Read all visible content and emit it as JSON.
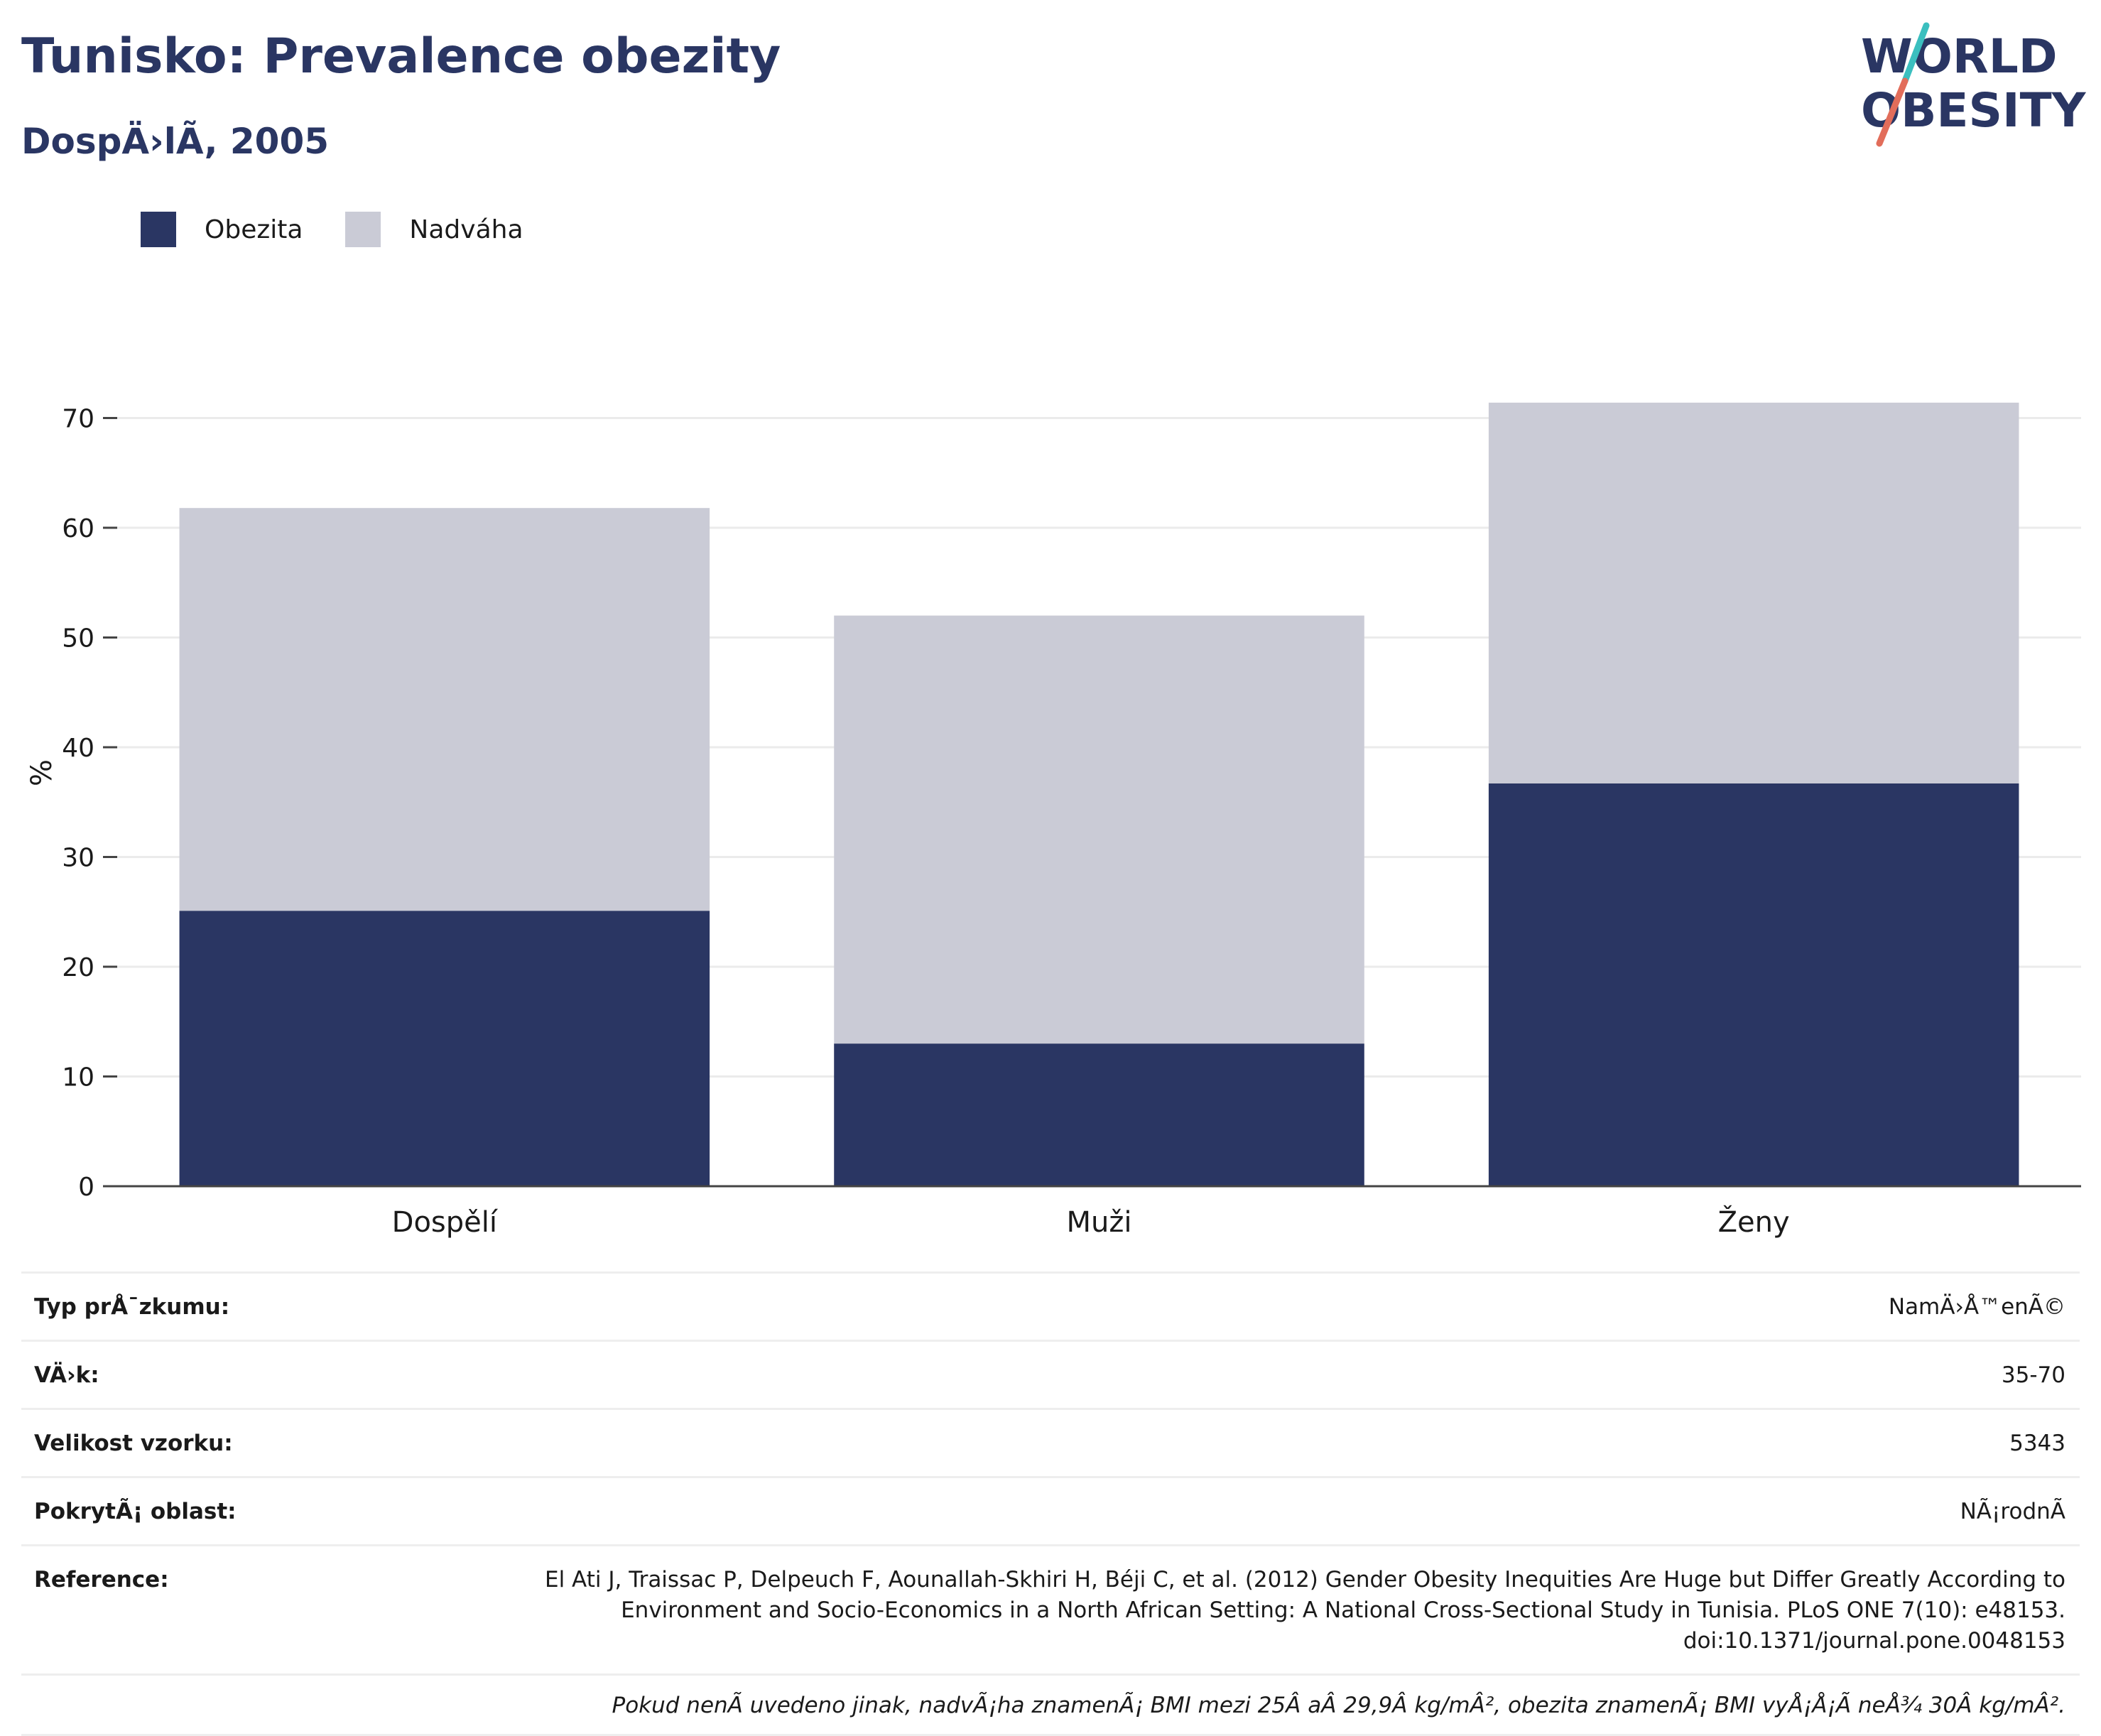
{
  "header": {
    "title": "Tunisko: Prevalence obezity",
    "subtitle": "DospÄ›lÃ, 2005"
  },
  "logo": {
    "line1": "WORLD",
    "line2": "OBESITY",
    "accent_teal": "#3bbfbf",
    "accent_coral": "#e26d5a"
  },
  "legend": [
    {
      "label": "Obezita",
      "color": "#2a3663"
    },
    {
      "label": "Nadváha",
      "color": "#cacbd6"
    }
  ],
  "chart_data": {
    "type": "bar",
    "stacked": true,
    "categories": [
      "Dospělí",
      "Muži",
      "Ženy"
    ],
    "series": [
      {
        "name": "Obezita",
        "color": "#2a3663",
        "values": [
          25.1,
          13.0,
          36.7
        ]
      },
      {
        "name": "Nadváha",
        "color": "#cacbd6",
        "values": [
          36.7,
          39.0,
          34.7
        ]
      }
    ],
    "ylabel": "%",
    "ylim": [
      0,
      75
    ],
    "yticks": [
      0,
      10,
      20,
      30,
      40,
      50,
      60,
      70
    ],
    "grid": true,
    "legend_position": "top-left"
  },
  "info": {
    "rows": [
      {
        "label": "Typ prÅ¯zkumu:",
        "value": "NamÄ›Å™enÃ©"
      },
      {
        "label": "VÄ›k:",
        "value": "35-70"
      },
      {
        "label": "Velikost vzorku:",
        "value": "5343"
      },
      {
        "label": "PokrytÃ¡ oblast:",
        "value": "NÃ¡rodnÃ"
      },
      {
        "label": "Reference:",
        "value": "El Ati J, Traissac P, Delpeuch F, Aounallah-Skhiri H, Béji C, et al. (2012) Gender Obesity Inequities Are Huge but Differ Greatly According to Environment and Socio-Economics in a North African Setting: A National Cross-Sectional Study in Tunisia. PLoS ONE 7(10): e48153. doi:10.1371/journal.pone.0048153"
      }
    ],
    "note": "Pokud nenÃ uvedeno jinak, nadvÃ¡ha znamenÃ¡ BMI mezi 25Â aÂ 29,9Â kg/mÂ², obezita znamenÃ¡ BMI vyÅ¡Å¡Ã neÅ¾ 30Â kg/mÂ²."
  }
}
